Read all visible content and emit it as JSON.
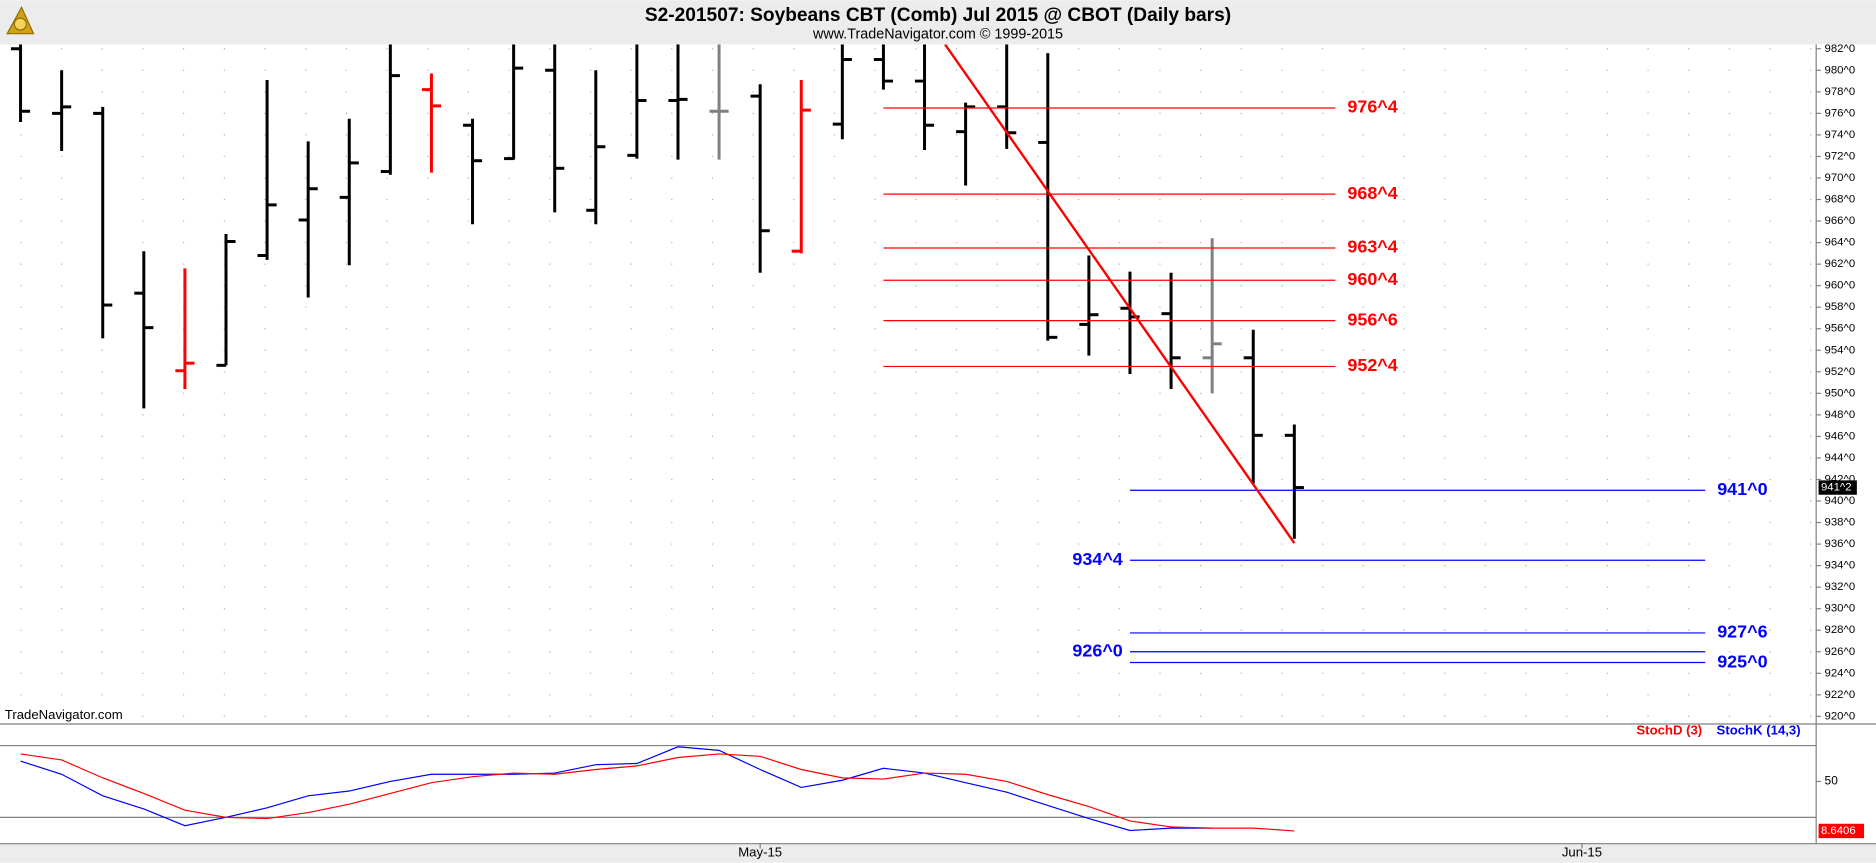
{
  "chart_data": [
    {
      "type": "ohlc",
      "title": "S2-201507:  Soybeans CBT (Comb) Jul 2015 @ CBOT  (Daily bars)",
      "subtitle": "www.TradeNavigator.com © 1999-2015",
      "watermark": "TradeNavigator.com",
      "x": [
        0,
        1,
        2,
        3,
        4,
        5,
        6,
        7,
        8,
        9,
        10,
        11,
        12,
        13,
        14,
        15,
        16,
        17,
        18,
        19,
        20,
        21,
        22,
        23,
        24,
        25,
        26,
        27,
        28,
        29,
        30,
        31
      ],
      "xlim": [
        -0.5,
        43.7
      ],
      "xticks": [
        {
          "value": 18,
          "label": "May-15"
        },
        {
          "value": 38,
          "label": "Jun-15"
        }
      ],
      "ylim": [
        919.4,
        982.4
      ],
      "yticks": [
        {
          "value": 920,
          "label": "920^0"
        },
        {
          "value": 922,
          "label": "922^0"
        },
        {
          "value": 924,
          "label": "924^0"
        },
        {
          "value": 926,
          "label": "926^0"
        },
        {
          "value": 928,
          "label": "928^0"
        },
        {
          "value": 930,
          "label": "930^0"
        },
        {
          "value": 932,
          "label": "932^0"
        },
        {
          "value": 934,
          "label": "934^0"
        },
        {
          "value": 936,
          "label": "936^0"
        },
        {
          "value": 938,
          "label": "938^0"
        },
        {
          "value": 940,
          "label": "940^0"
        },
        {
          "value": 942,
          "label": "942^0"
        },
        {
          "value": 944,
          "label": "944^0"
        },
        {
          "value": 946,
          "label": "946^0"
        },
        {
          "value": 948,
          "label": "948^0"
        },
        {
          "value": 950,
          "label": "950^0"
        },
        {
          "value": 952,
          "label": "952^0"
        },
        {
          "value": 954,
          "label": "954^0"
        },
        {
          "value": 956,
          "label": "956^0"
        },
        {
          "value": 958,
          "label": "958^0"
        },
        {
          "value": 960,
          "label": "960^0"
        },
        {
          "value": 962,
          "label": "962^0"
        },
        {
          "value": 964,
          "label": "964^0"
        },
        {
          "value": 966,
          "label": "966^0"
        },
        {
          "value": 968,
          "label": "968^0"
        },
        {
          "value": 970,
          "label": "970^0"
        },
        {
          "value": 972,
          "label": "972^0"
        },
        {
          "value": 974,
          "label": "974^0"
        },
        {
          "value": 976,
          "label": "976^0"
        },
        {
          "value": 978,
          "label": "978^0"
        },
        {
          "value": 980,
          "label": "980^0"
        },
        {
          "value": 982,
          "label": "982^0"
        }
      ],
      "grid": true,
      "open": [
        982,
        976,
        976,
        959.3,
        952.1,
        952.6,
        962.8,
        966.1,
        968.2,
        970.6,
        978.2,
        974.9,
        971.8,
        980,
        967,
        972.1,
        977.2,
        976.2,
        977.6,
        963.2,
        975,
        981,
        979,
        974.3,
        976.6,
        973.3,
        956.4,
        957.9,
        957.4,
        953.3,
        953.3,
        946.1
      ],
      "high": [
        982.4,
        980,
        976.6,
        963.2,
        961.6,
        964.8,
        979.1,
        973.4,
        975.5,
        982.4,
        979.7,
        975.5,
        982.4,
        982.4,
        980,
        982.4,
        982.4,
        982.4,
        978.7,
        979.1,
        982.4,
        982.4,
        982.4,
        977,
        982.4,
        981.6,
        962.8,
        961.3,
        961.2,
        964.4,
        955.9,
        947.1
      ],
      "low": [
        975.2,
        972.5,
        955.1,
        948.6,
        950.4,
        952.6,
        962.4,
        958.9,
        961.9,
        970.3,
        970.5,
        965.7,
        971.7,
        966.8,
        965.7,
        971.8,
        971.7,
        971.7,
        961.2,
        963,
        973.6,
        978.2,
        972.6,
        969.3,
        972.7,
        954.9,
        953.5,
        951.8,
        950.4,
        950,
        941.6,
        936.5
      ],
      "close": [
        976.2,
        976.6,
        958.2,
        956.1,
        952.8,
        964.1,
        967.5,
        969,
        971.4,
        979.5,
        976.7,
        971.6,
        980.2,
        970.9,
        972.9,
        977.2,
        977.3,
        976.2,
        965.1,
        976.3,
        981,
        979,
        974.9,
        976.6,
        974.2,
        955.2,
        957.3,
        957.1,
        953.3,
        954.6,
        946.1,
        941.25
      ],
      "colors": [
        "#000000",
        "#000000",
        "#000000",
        "#000000",
        "#ff0000",
        "#000000",
        "#000000",
        "#000000",
        "#000000",
        "#000000",
        "#ff0000",
        "#000000",
        "#000000",
        "#000000",
        "#000000",
        "#000000",
        "#000000",
        "#808080",
        "#000000",
        "#ff0000",
        "#000000",
        "#000000",
        "#000000",
        "#000000",
        "#000000",
        "#000000",
        "#000000",
        "#000000",
        "#000000",
        "#808080",
        "#000000",
        "#000000"
      ],
      "last_close": {
        "value": 941.25,
        "label": "941^2"
      },
      "trendline": {
        "x": [
          22.5,
          31
        ],
        "y": [
          982.4,
          936.1
        ],
        "color": "#ff0000"
      },
      "levels": [
        {
          "value": 976.5,
          "label": "976^4",
          "color": "#ff0000",
          "x": [
            21,
            32
          ]
        },
        {
          "value": 968.5,
          "label": "968^4",
          "color": "#ff0000",
          "x": [
            21,
            32
          ]
        },
        {
          "value": 963.5,
          "label": "963^4",
          "color": "#ff0000",
          "x": [
            21,
            32
          ]
        },
        {
          "value": 960.5,
          "label": "960^4",
          "color": "#ff0000",
          "x": [
            21,
            32
          ]
        },
        {
          "value": 956.75,
          "label": "956^6",
          "color": "#ff0000",
          "x": [
            21,
            32
          ]
        },
        {
          "value": 952.5,
          "label": "952^4",
          "color": "#ff0000",
          "x": [
            21,
            32
          ]
        },
        {
          "value": 941,
          "label": "941^0",
          "color": "#0000ff",
          "x": [
            27,
            41
          ]
        },
        {
          "value": 934.5,
          "label": "934^4",
          "color": "#0000ff",
          "x": [
            27,
            41
          ]
        },
        {
          "value": 927.75,
          "label": "927^6",
          "color": "#0000ff",
          "x": [
            27,
            41
          ]
        },
        {
          "value": 926,
          "label": "926^0",
          "color": "#0000ff",
          "x": [
            27,
            41
          ]
        },
        {
          "value": 925,
          "label": "925^0",
          "color": "#0000ff",
          "x": [
            27,
            41
          ]
        }
      ]
    },
    {
      "type": "line",
      "ylim": [
        0,
        100
      ],
      "yticks": [
        50
      ],
      "levels": [
        20,
        80
      ],
      "series": [
        {
          "name": "StochD (3)",
          "color": "#ff0000",
          "values": [
            73,
            68,
            53,
            40,
            26,
            20,
            19,
            24,
            31,
            40,
            49,
            54,
            57,
            56,
            60,
            63,
            70,
            73,
            71,
            60,
            53,
            52,
            57,
            56,
            50,
            39,
            29,
            17,
            12,
            11,
            11,
            8.6406
          ]
        },
        {
          "name": "StochK (14,3)",
          "color": "#0000ff",
          "values": [
            67,
            56,
            38,
            27,
            13,
            20,
            28,
            38,
            42,
            50,
            56,
            56,
            56,
            57,
            64,
            65,
            79,
            76,
            60,
            45,
            51,
            61,
            57,
            49,
            41,
            30,
            19,
            9,
            11,
            11,
            null,
            null
          ]
        }
      ]
    }
  ]
}
